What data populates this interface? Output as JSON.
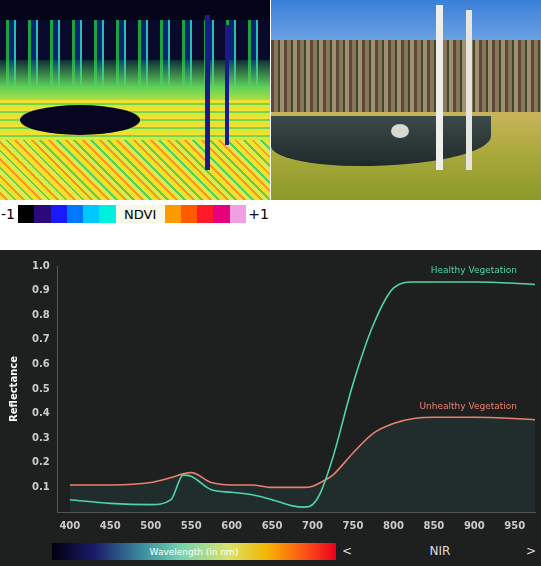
{
  "ndvi_colorbar": {
    "label": "NDVI",
    "range": [
      -1,
      1
    ],
    "ticks": [
      -1,
      {
        "value": 1,
        "label": "+1"
      }
    ]
  },
  "chart_data": {
    "type": "line",
    "x_label": "Wavelength (in nm)",
    "y_label": "Reflectance",
    "x_band": {
      "label": "NIR",
      "prev": "<",
      "next": ">"
    },
    "x": [
      400,
      450,
      500,
      525,
      540,
      550,
      575,
      600,
      625,
      650,
      675,
      690,
      700,
      710,
      725,
      750,
      775,
      800,
      825,
      850,
      900,
      950,
      975
    ],
    "xlim": [
      385,
      975
    ],
    "xticks": [
      400,
      450,
      500,
      550,
      600,
      650,
      700,
      750,
      800,
      850,
      900,
      950
    ],
    "ylim": [
      0,
      1
    ],
    "yticks": [
      0.1,
      0.2,
      0.3,
      0.4,
      0.5,
      0.6,
      0.7,
      0.8,
      0.9,
      {
        "value": 1,
        "label": "1.0"
      }
    ],
    "grid": false,
    "series": [
      {
        "name": "Healthy Vegetation",
        "color": "#4fd6a8",
        "values": [
          0.05,
          0.035,
          0.03,
          0.05,
          0.15,
          0.145,
          0.09,
          0.08,
          0.07,
          0.05,
          0.025,
          0.02,
          0.03,
          0.08,
          0.22,
          0.52,
          0.76,
          0.91,
          0.935,
          0.935,
          0.935,
          0.93,
          0.925
        ]
      },
      {
        "name": "Unhealthy Vegetation",
        "color": "#e8806e",
        "values": [
          0.11,
          0.11,
          0.12,
          0.14,
          0.155,
          0.16,
          0.12,
          0.11,
          0.11,
          0.1,
          0.1,
          0.1,
          0.105,
          0.12,
          0.15,
          0.24,
          0.32,
          0.36,
          0.38,
          0.385,
          0.385,
          0.38,
          0.375
        ]
      }
    ]
  }
}
